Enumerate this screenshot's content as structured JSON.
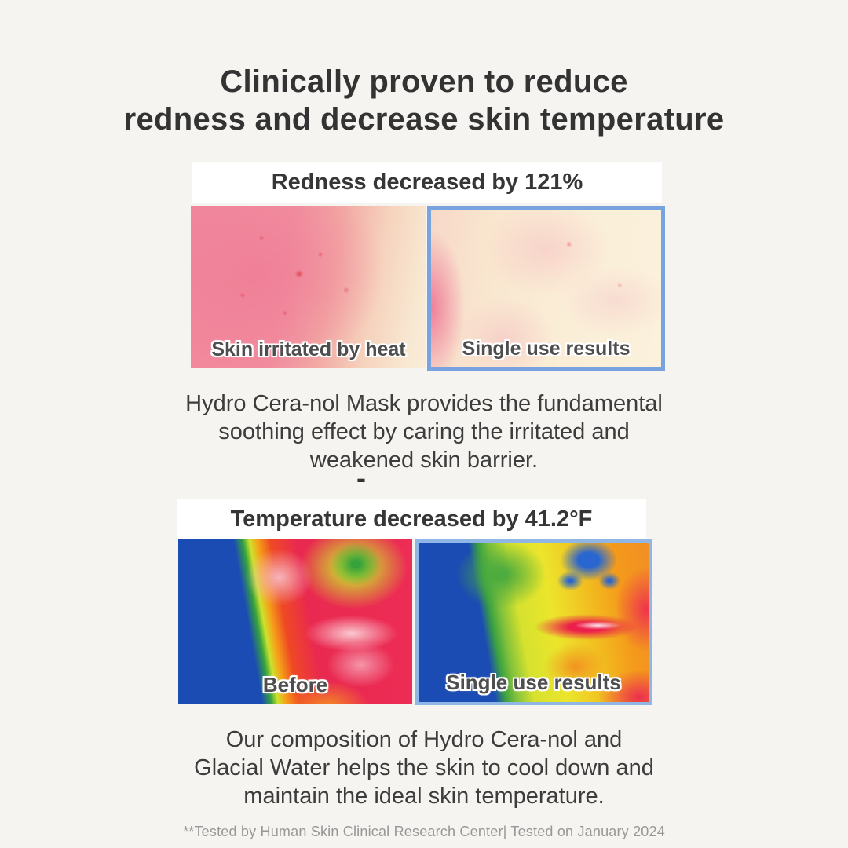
{
  "title": "Clinically proven to reduce\nredness and decrease skin temperature",
  "redness_section": {
    "banner": "Redness decreased by 121%",
    "before_label": "Skin irritated by heat",
    "after_label": "Single use results",
    "description": "Hydro Cera-nol Mask provides the fundamental\nsoothing effect by caring the irritated and\nweakened skin barrier."
  },
  "divider": "-",
  "temperature_section": {
    "banner": "Temperature decreased by 41.2°F",
    "before_label": "Before",
    "after_label": "Single use results",
    "description": "Our composition of Hydro Cera-nol and\nGlacial Water helps the skin to cool down and\nmaintain the ideal skin temperature."
  },
  "footnote": "**Tested by Human Skin Clinical Research Center| Tested on January 2024",
  "colors": {
    "page_background": "#f5f4f1",
    "banner_background": "#ffffff",
    "result_highlight_border": "#79a3de",
    "title_text": "#333333",
    "body_text": "#3c3c3c",
    "footnote_text": "#979797"
  }
}
